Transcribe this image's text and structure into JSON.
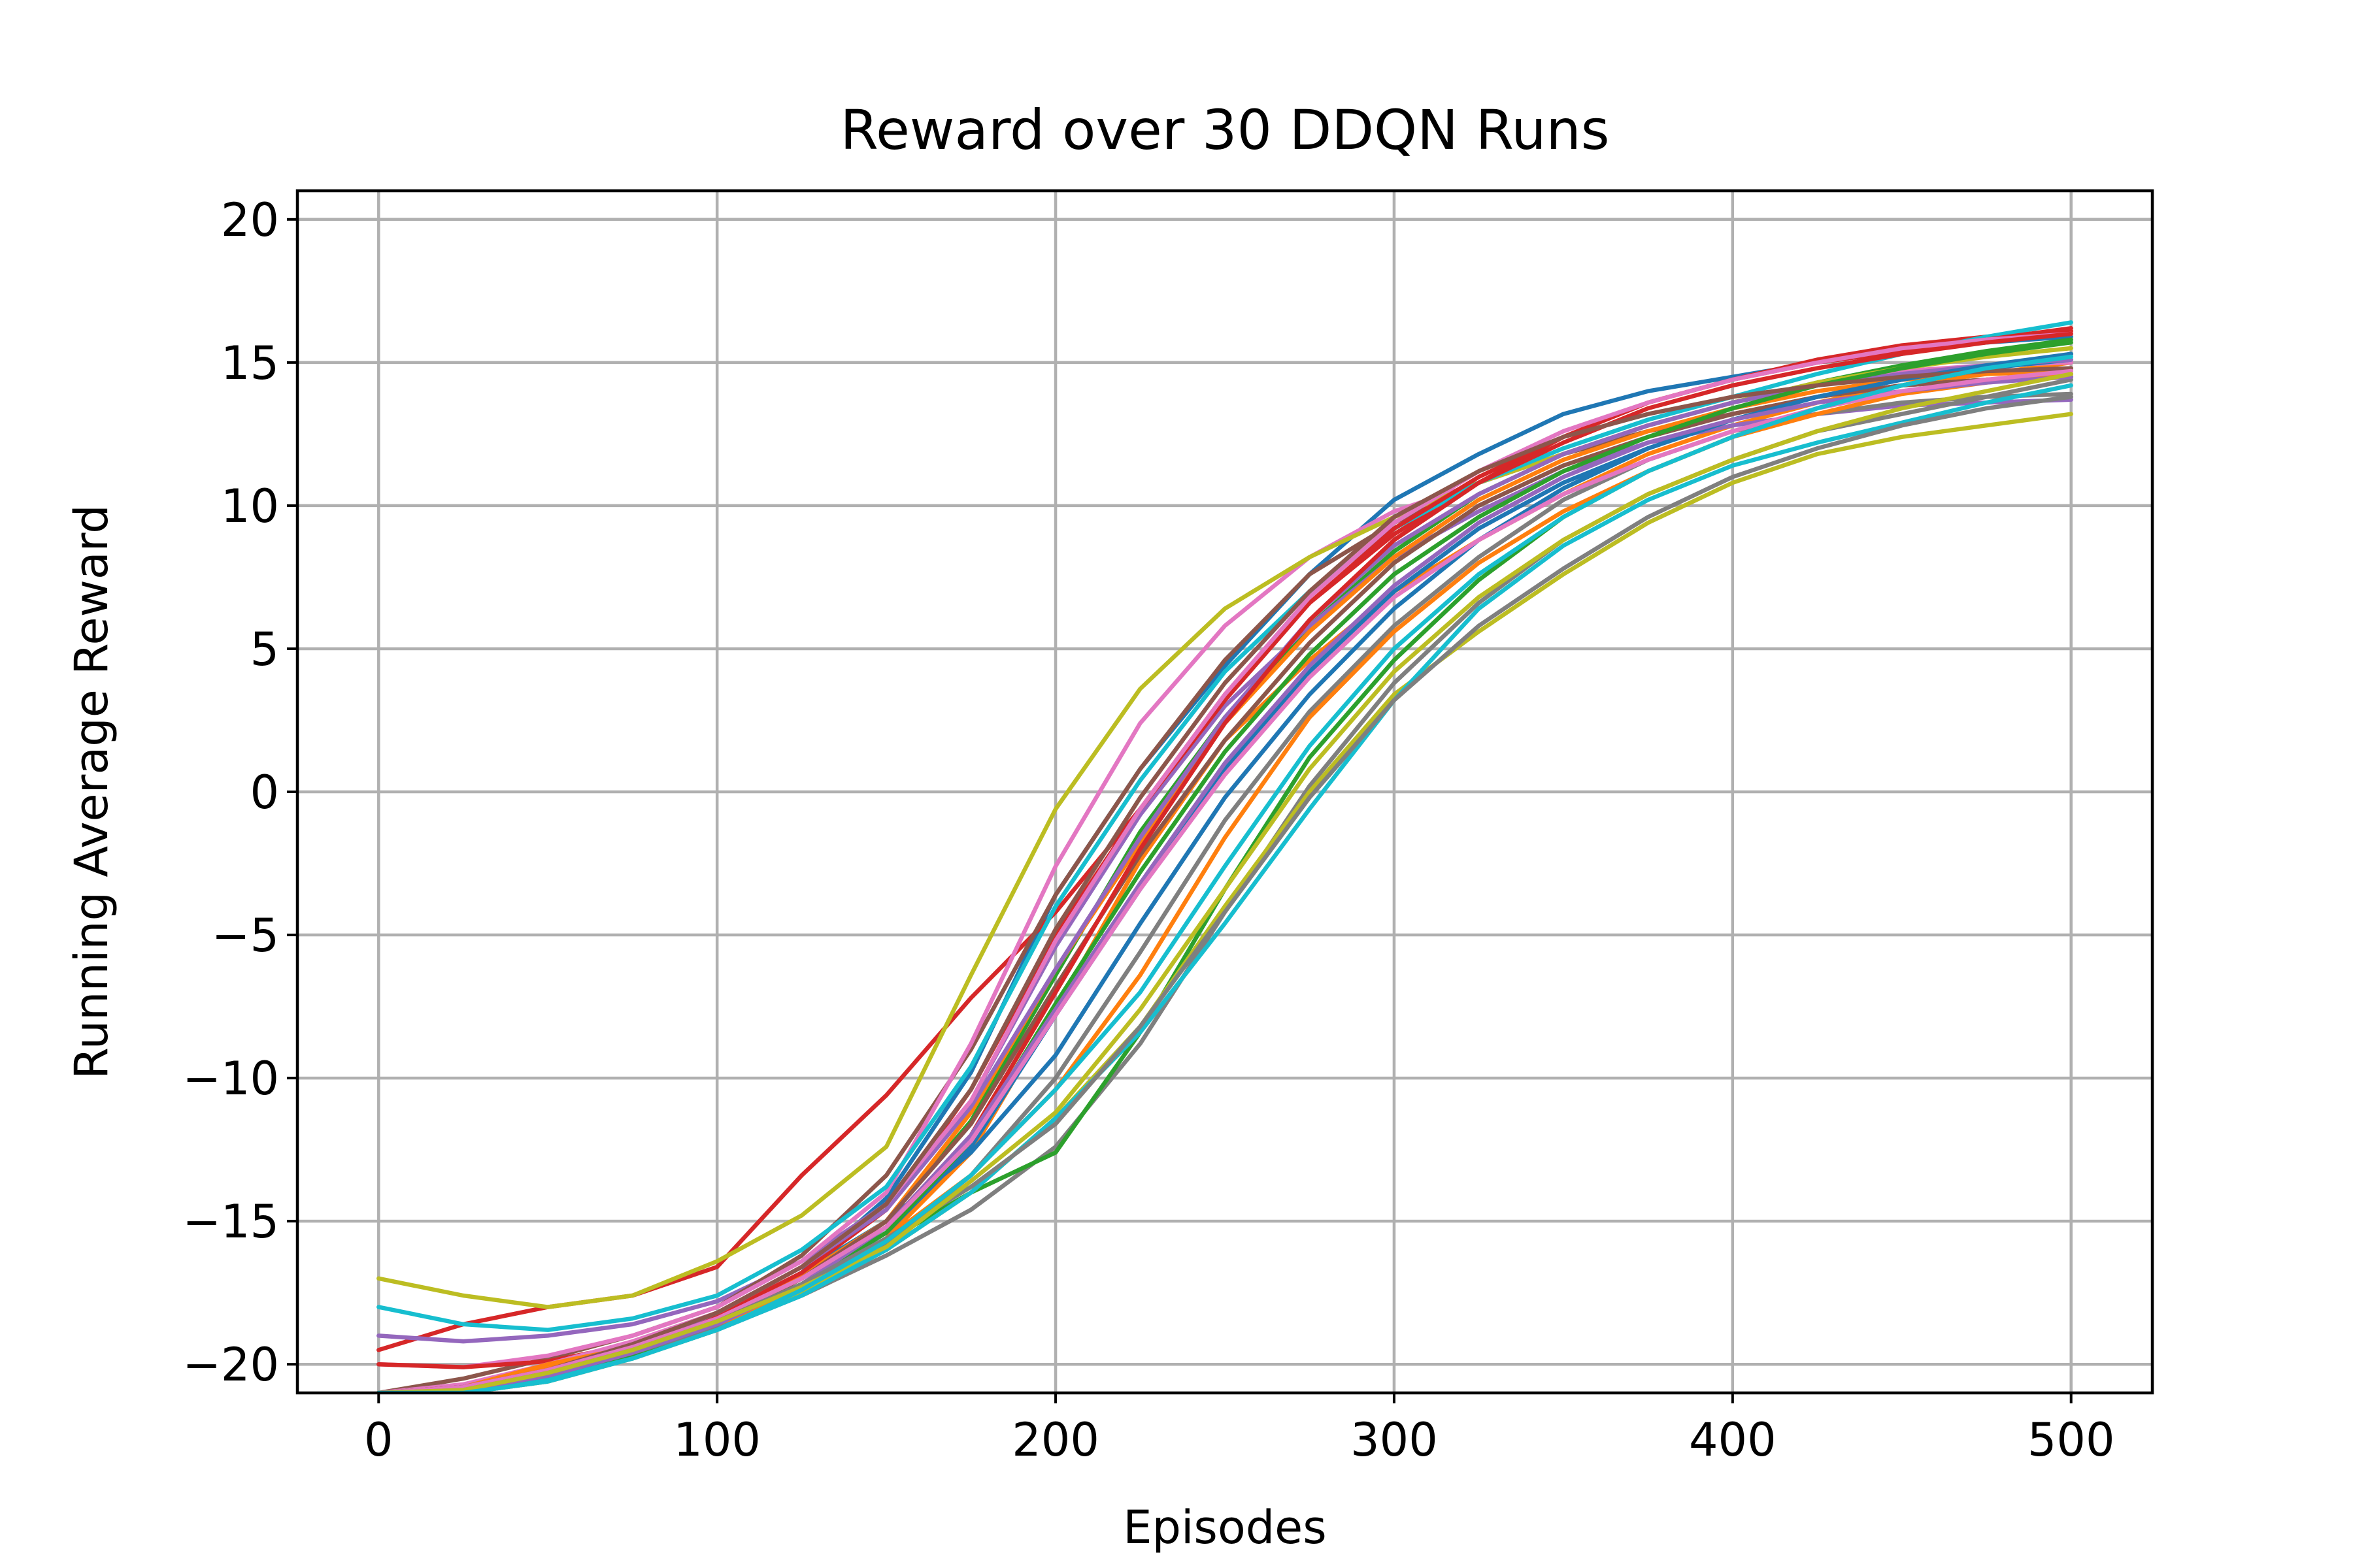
{
  "chart_data": {
    "type": "line",
    "title": "Reward over 30 DDQN Runs",
    "xlabel": "Episodes",
    "ylabel": "Running Average Reward",
    "xlim": [
      -24,
      524
    ],
    "ylim": [
      -21,
      21
    ],
    "xticks": [
      0,
      100,
      200,
      300,
      400,
      500
    ],
    "yticks": [
      -20,
      -15,
      -10,
      -5,
      0,
      5,
      10,
      15,
      20
    ],
    "xtick_labels": [
      "0",
      "100",
      "200",
      "300",
      "400",
      "500"
    ],
    "ytick_labels": [
      "−20",
      "−15",
      "−10",
      "−5",
      "0",
      "5",
      "10",
      "15",
      "20"
    ],
    "grid": true,
    "legend": "none",
    "x": [
      0,
      25,
      50,
      75,
      100,
      125,
      150,
      175,
      200,
      225,
      250,
      275,
      300,
      325,
      350,
      375,
      400,
      425,
      450,
      475,
      500
    ],
    "series": [
      {
        "color": "#1f77b4",
        "values": [
          -21.0,
          -21.0,
          -20.6,
          -19.8,
          -18.6,
          -16.8,
          -14.2,
          -9.8,
          -3.6,
          0.8,
          4.4,
          7.6,
          10.2,
          11.8,
          13.2,
          14.0,
          14.5,
          15.0,
          15.4,
          15.7,
          15.9
        ]
      },
      {
        "color": "#ff7f0e",
        "values": [
          -21.0,
          -21.0,
          -20.5,
          -19.8,
          -18.8,
          -17.4,
          -15.6,
          -12.6,
          -7.6,
          -2.4,
          1.8,
          4.6,
          7.0,
          8.8,
          10.4,
          11.8,
          12.8,
          13.6,
          14.2,
          14.6,
          15.0
        ]
      },
      {
        "color": "#2ca02c",
        "values": [
          -21.0,
          -20.9,
          -20.3,
          -19.5,
          -18.5,
          -17.0,
          -15.0,
          -11.5,
          -6.4,
          -1.4,
          2.6,
          5.8,
          8.4,
          10.4,
          11.8,
          12.8,
          13.6,
          14.3,
          14.9,
          15.4,
          15.8
        ]
      },
      {
        "color": "#d62728",
        "values": [
          -19.5,
          -18.6,
          -18.0,
          -17.6,
          -16.6,
          -13.4,
          -10.6,
          -7.2,
          -4.2,
          -0.6,
          3.4,
          6.6,
          9.0,
          10.8,
          12.4,
          13.6,
          14.4,
          15.1,
          15.6,
          15.9,
          16.1
        ]
      },
      {
        "color": "#9467bd",
        "values": [
          -19.0,
          -19.2,
          -19.0,
          -18.6,
          -17.8,
          -16.4,
          -14.4,
          -10.8,
          -5.4,
          -0.8,
          3.0,
          5.8,
          8.2,
          9.8,
          11.2,
          12.2,
          12.8,
          13.2,
          13.5,
          13.6,
          13.7
        ]
      },
      {
        "color": "#8c564b",
        "values": [
          -21.0,
          -20.5,
          -19.8,
          -19.0,
          -18.0,
          -16.2,
          -13.4,
          -9.0,
          -3.6,
          0.8,
          4.6,
          7.6,
          9.4,
          10.8,
          11.8,
          12.6,
          13.2,
          13.8,
          14.2,
          14.4,
          14.5
        ]
      },
      {
        "color": "#e377c2",
        "values": [
          -20.0,
          -20.1,
          -19.7,
          -19.0,
          -18.0,
          -16.4,
          -14.0,
          -8.8,
          -2.6,
          2.4,
          5.8,
          8.2,
          9.8,
          10.8,
          11.8,
          12.8,
          13.6,
          14.2,
          14.7,
          14.9,
          15.0
        ]
      },
      {
        "color": "#7f7f7f",
        "values": [
          -21.0,
          -20.9,
          -20.3,
          -19.6,
          -18.8,
          -17.6,
          -16.2,
          -14.6,
          -12.4,
          -8.8,
          -4.2,
          0.2,
          3.8,
          6.6,
          8.8,
          10.4,
          11.6,
          12.6,
          13.2,
          13.8,
          14.4
        ]
      },
      {
        "color": "#bcbd22",
        "values": [
          -17.0,
          -17.6,
          -18.0,
          -17.6,
          -16.4,
          -14.8,
          -12.4,
          -6.4,
          -0.6,
          3.6,
          6.4,
          8.2,
          9.6,
          10.8,
          11.8,
          12.8,
          13.6,
          14.3,
          14.8,
          15.2,
          15.5
        ]
      },
      {
        "color": "#17becf",
        "values": [
          -18.0,
          -18.6,
          -18.8,
          -18.4,
          -17.6,
          -16.0,
          -13.8,
          -9.6,
          -4.0,
          0.4,
          4.2,
          7.0,
          9.2,
          10.8,
          12.0,
          13.0,
          13.8,
          14.6,
          15.3,
          15.9,
          16.4
        ]
      },
      {
        "color": "#1f77b4",
        "values": [
          -21.0,
          -20.8,
          -20.2,
          -19.4,
          -18.4,
          -16.8,
          -15.0,
          -12.6,
          -9.2,
          -4.6,
          -0.2,
          3.4,
          6.4,
          8.8,
          10.6,
          12.0,
          13.0,
          13.8,
          14.4,
          14.8,
          15.1
        ]
      },
      {
        "color": "#ff7f0e",
        "values": [
          -21.0,
          -20.8,
          -20.1,
          -19.3,
          -18.3,
          -16.9,
          -15.0,
          -11.2,
          -6.2,
          -1.8,
          2.4,
          5.6,
          8.2,
          10.2,
          11.6,
          12.6,
          13.4,
          14.0,
          14.4,
          14.6,
          14.7
        ]
      },
      {
        "color": "#2ca02c",
        "values": [
          -21.0,
          -20.9,
          -20.4,
          -19.7,
          -18.7,
          -17.3,
          -15.7,
          -14.0,
          -12.6,
          -8.4,
          -3.4,
          1.2,
          4.6,
          7.4,
          9.6,
          11.2,
          12.4,
          13.4,
          14.2,
          14.8,
          15.3
        ]
      },
      {
        "color": "#d62728",
        "values": [
          -20.0,
          -20.1,
          -19.9,
          -19.3,
          -18.3,
          -16.8,
          -14.6,
          -10.4,
          -5.0,
          -0.6,
          3.2,
          6.6,
          9.2,
          11.0,
          12.4,
          13.6,
          14.4,
          15.0,
          15.4,
          15.8,
          16.2
        ]
      },
      {
        "color": "#9467bd",
        "values": [
          -21.0,
          -20.9,
          -20.3,
          -19.4,
          -18.2,
          -16.6,
          -14.6,
          -11.0,
          -6.2,
          -1.6,
          2.6,
          6.0,
          8.6,
          10.4,
          11.8,
          12.8,
          13.6,
          14.2,
          14.6,
          14.9,
          15.1
        ]
      },
      {
        "color": "#8c564b",
        "values": [
          -21.0,
          -20.9,
          -20.4,
          -19.6,
          -18.6,
          -17.0,
          -15.0,
          -11.6,
          -6.8,
          -2.2,
          1.8,
          5.2,
          8.0,
          10.0,
          11.4,
          12.4,
          13.2,
          13.8,
          14.2,
          14.4,
          14.5
        ]
      },
      {
        "color": "#e377c2",
        "values": [
          -21.0,
          -20.7,
          -20.0,
          -19.2,
          -18.2,
          -16.6,
          -14.4,
          -10.8,
          -5.2,
          -0.6,
          3.4,
          6.8,
          9.4,
          11.2,
          12.6,
          13.6,
          14.4,
          15.0,
          15.5,
          15.8,
          16.0
        ]
      },
      {
        "color": "#7f7f7f",
        "values": [
          -21.0,
          -20.9,
          -20.4,
          -19.6,
          -18.7,
          -17.4,
          -15.8,
          -13.4,
          -10.0,
          -5.6,
          -1.0,
          2.8,
          5.8,
          8.2,
          10.2,
          11.6,
          12.6,
          13.2,
          13.6,
          13.8,
          13.9
        ]
      },
      {
        "color": "#bcbd22",
        "values": [
          -21.0,
          -21.0,
          -20.6,
          -19.8,
          -18.8,
          -17.5,
          -16.0,
          -14.0,
          -11.4,
          -8.2,
          -4.0,
          0.0,
          3.4,
          5.6,
          7.6,
          9.4,
          10.8,
          11.8,
          12.4,
          12.8,
          13.2
        ]
      },
      {
        "color": "#17becf",
        "values": [
          -21.0,
          -21.0,
          -20.5,
          -19.8,
          -18.8,
          -17.6,
          -16.0,
          -14.0,
          -11.4,
          -8.4,
          -4.6,
          -0.6,
          3.2,
          6.4,
          8.6,
          10.2,
          11.4,
          12.2,
          12.9,
          13.6,
          14.2
        ]
      },
      {
        "color": "#1f77b4",
        "values": [
          -21.0,
          -20.9,
          -20.4,
          -19.6,
          -18.6,
          -17.2,
          -15.4,
          -12.4,
          -7.8,
          -3.4,
          0.8,
          4.2,
          7.0,
          9.2,
          10.8,
          12.0,
          13.0,
          13.8,
          14.4,
          14.9,
          15.3
        ]
      },
      {
        "color": "#ff7f0e",
        "values": [
          -21.0,
          -20.8,
          -20.0,
          -19.4,
          -18.6,
          -17.4,
          -15.6,
          -13.4,
          -10.4,
          -6.4,
          -1.6,
          2.6,
          5.6,
          8.0,
          9.8,
          11.2,
          12.4,
          13.2,
          13.9,
          14.3,
          14.6
        ]
      },
      {
        "color": "#2ca02c",
        "values": [
          -21.0,
          -20.8,
          -20.3,
          -19.5,
          -18.5,
          -17.2,
          -15.4,
          -12.2,
          -7.4,
          -2.8,
          1.4,
          4.8,
          7.6,
          9.6,
          11.2,
          12.4,
          13.4,
          14.2,
          14.8,
          15.3,
          15.7
        ]
      },
      {
        "color": "#d62728",
        "values": [
          -21.0,
          -20.8,
          -20.2,
          -19.4,
          -18.4,
          -17.0,
          -15.2,
          -12.0,
          -7.0,
          -2.0,
          2.4,
          6.0,
          8.8,
          10.8,
          12.2,
          13.4,
          14.2,
          14.8,
          15.3,
          15.7,
          16.0
        ]
      },
      {
        "color": "#9467bd",
        "values": [
          -21.0,
          -20.9,
          -20.4,
          -19.6,
          -18.6,
          -17.2,
          -15.2,
          -12.0,
          -7.6,
          -3.2,
          1.0,
          4.4,
          7.2,
          9.4,
          11.0,
          12.2,
          13.0,
          13.6,
          14.0,
          14.3,
          14.5
        ]
      },
      {
        "color": "#8c564b",
        "values": [
          -21.0,
          -20.8,
          -20.2,
          -19.3,
          -18.2,
          -16.6,
          -14.4,
          -10.4,
          -4.8,
          -0.2,
          3.8,
          7.0,
          9.6,
          11.2,
          12.4,
          13.2,
          13.8,
          14.2,
          14.5,
          14.7,
          14.8
        ]
      },
      {
        "color": "#e377c2",
        "values": [
          -21.0,
          -20.8,
          -20.2,
          -19.4,
          -18.4,
          -17.0,
          -15.2,
          -12.2,
          -7.8,
          -3.4,
          0.6,
          4.0,
          6.8,
          8.8,
          10.4,
          11.6,
          12.6,
          13.4,
          14.0,
          14.4,
          14.7
        ]
      },
      {
        "color": "#7f7f7f",
        "values": [
          -21.0,
          -20.9,
          -20.3,
          -19.5,
          -18.5,
          -17.2,
          -15.6,
          -13.8,
          -11.6,
          -8.2,
          -4.2,
          -0.2,
          3.2,
          5.8,
          7.8,
          9.6,
          11.0,
          12.0,
          12.8,
          13.4,
          13.8
        ]
      },
      {
        "color": "#bcbd22",
        "values": [
          -21.0,
          -20.9,
          -20.3,
          -19.5,
          -18.5,
          -17.3,
          -15.9,
          -13.6,
          -11.2,
          -7.6,
          -3.4,
          0.8,
          4.2,
          6.8,
          8.8,
          10.4,
          11.6,
          12.6,
          13.4,
          14.0,
          14.6
        ]
      },
      {
        "color": "#17becf",
        "values": [
          -21.0,
          -21.0,
          -20.6,
          -19.8,
          -18.8,
          -17.4,
          -15.7,
          -13.4,
          -10.4,
          -7.0,
          -2.6,
          1.6,
          5.0,
          7.6,
          9.6,
          11.2,
          12.4,
          13.4,
          14.2,
          14.8,
          15.2
        ]
      }
    ]
  }
}
